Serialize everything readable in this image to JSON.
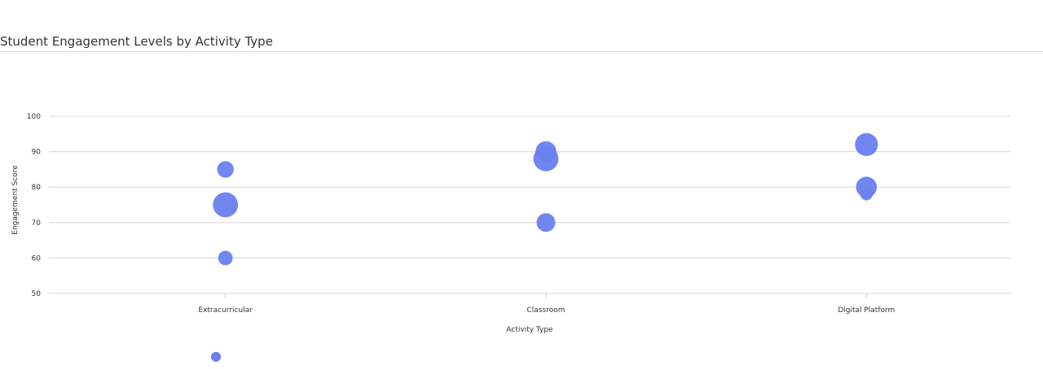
{
  "page": {
    "title": "Student Engagement Levels by Activity Type"
  },
  "chart_data": {
    "type": "scatter",
    "title": "Student Engagement Levels by Activity Type",
    "xlabel": "Activity Type",
    "ylabel": "Engagement Score",
    "categories": [
      "Extracurricular",
      "Classroom",
      "Digital Platform"
    ],
    "ylim": [
      50,
      100
    ],
    "yticks": [
      50,
      60,
      70,
      80,
      90,
      100
    ],
    "grid": true,
    "legend": "none",
    "point_color": "#6a7ff0",
    "points": [
      {
        "category": "Extracurricular",
        "y": 85,
        "size": 2
      },
      {
        "category": "Extracurricular",
        "y": 75,
        "size": 4
      },
      {
        "category": "Extracurricular",
        "y": 60,
        "size": 1.5
      },
      {
        "category": "Classroom",
        "y": 90,
        "size": 3
      },
      {
        "category": "Classroom",
        "y": 88,
        "size": 4
      },
      {
        "category": "Classroom",
        "y": 70,
        "size": 2.5
      },
      {
        "category": "Digital Platform",
        "y": 92,
        "size": 3.5
      },
      {
        "category": "Digital Platform",
        "y": 80,
        "size": 3
      },
      {
        "category": "Digital Platform",
        "y": 78,
        "size": 1
      }
    ],
    "legend_marker_color": "#6a7ff0"
  }
}
